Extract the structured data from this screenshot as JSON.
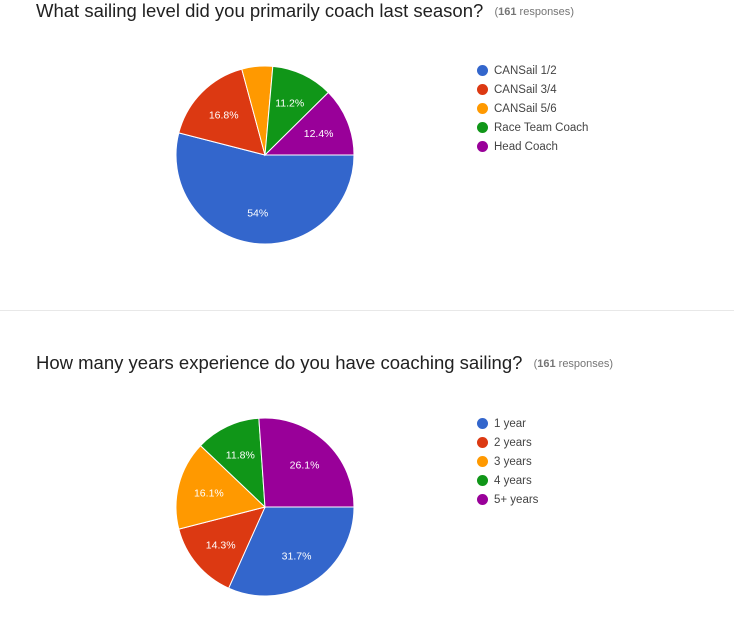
{
  "questions": [
    {
      "title": "What sailing level did you primarily coach last season?",
      "responses_count": "161",
      "responses_word": "responses",
      "legend": [
        "CANSail 1/2",
        "CANSail 3/4",
        "CANSail 5/6",
        "Race Team Coach",
        "Head Coach"
      ]
    },
    {
      "title": "How many years experience do you have coaching sailing?",
      "responses_count": "161",
      "responses_word": "responses",
      "legend": [
        "1 year",
        "2 years",
        "3 years",
        "4 years",
        "5+ years"
      ]
    }
  ],
  "chart_data": [
    {
      "type": "pie",
      "title": "What sailing level did you primarily coach last season?",
      "categories": [
        "CANSail 1/2",
        "CANSail 3/4",
        "CANSail 5/6",
        "Race Team Coach",
        "Head Coach"
      ],
      "values": [
        54,
        16.8,
        5.6,
        11.2,
        12.4
      ],
      "labels": [
        "54%",
        "16.8%",
        "",
        "11.2%",
        "12.4%"
      ],
      "colors": [
        "#3366cc",
        "#dc3912",
        "#ff9900",
        "#109618",
        "#990099"
      ],
      "legend_position": "right"
    },
    {
      "type": "pie",
      "title": "How many years experience do you have coaching sailing?",
      "categories": [
        "1 year",
        "2 years",
        "3 years",
        "4 years",
        "5+ years"
      ],
      "values": [
        31.7,
        14.3,
        16.1,
        11.8,
        26.1
      ],
      "labels": [
        "31.7%",
        "14.3%",
        "16.1%",
        "11.8%",
        "26.1%"
      ],
      "colors": [
        "#3366cc",
        "#dc3912",
        "#ff9900",
        "#109618",
        "#990099"
      ],
      "legend_position": "right"
    }
  ]
}
